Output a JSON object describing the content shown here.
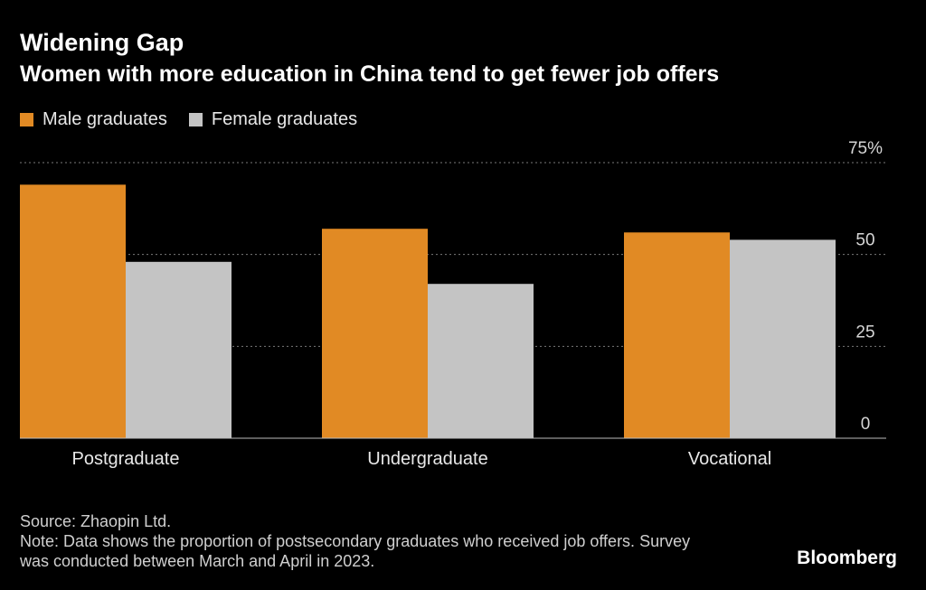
{
  "chart_data": {
    "type": "bar",
    "title": "Widening Gap",
    "subtitle": "Women with more education in China tend to get fewer job offers",
    "categories": [
      "Postgraduate",
      "Undergraduate",
      "Vocational"
    ],
    "series": [
      {
        "name": "Male graduates",
        "color": "#E18A24",
        "values": [
          69,
          57,
          56
        ]
      },
      {
        "name": "Female graduates",
        "color": "#C4C4C4",
        "values": [
          48,
          42,
          54
        ]
      }
    ],
    "y_ticks": [
      {
        "value": 0,
        "label": "0"
      },
      {
        "value": 25,
        "label": "25"
      },
      {
        "value": 50,
        "label": "50"
      },
      {
        "value": 75,
        "label": "75%"
      }
    ],
    "ylim": [
      0,
      75
    ],
    "grid": true,
    "legend_position": "top-left",
    "xlabel": "",
    "ylabel": ""
  },
  "footer": {
    "source": "Source: Zhaopin Ltd.",
    "note": "Note: Data shows the proportion of postsecondary graduates who received job offers. Survey was conducted between March and April in 2023."
  },
  "brand": "Bloomberg",
  "colors": {
    "background": "#000000",
    "grid": "#7a7a7a",
    "axis": "#bdbdbd",
    "tick_text": "#d6d6d6"
  }
}
